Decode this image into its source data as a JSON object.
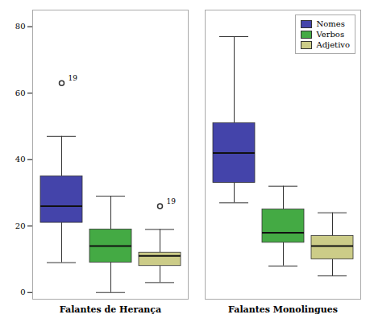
{
  "chart_data": {
    "type": "box",
    "categories": [
      "Falantes de Herança",
      "Falantes Monolingues"
    ],
    "series": [
      {
        "name": "Nomes",
        "color": "#4444AA",
        "q1": [
          21,
          33
        ],
        "median": [
          26,
          42
        ],
        "q3": [
          35,
          51
        ],
        "whislo": [
          9,
          27
        ],
        "whishi": [
          47,
          77
        ],
        "fliers": [
          [
            63
          ],
          []
        ],
        "flier_labels": [
          "19",
          null
        ]
      },
      {
        "name": "Verbos",
        "color": "#44AA44",
        "q1": [
          9,
          15
        ],
        "median": [
          14,
          18
        ],
        "q3": [
          19,
          25
        ],
        "whislo": [
          0,
          8
        ],
        "whishi": [
          29,
          32
        ],
        "fliers": [
          [],
          []
        ]
      },
      {
        "name": "Adjetivo",
        "color": "#CCCC88",
        "q1": [
          8,
          10
        ],
        "median": [
          11,
          14
        ],
        "q3": [
          12,
          17
        ],
        "whislo": [
          3,
          5
        ],
        "whishi": [
          19,
          24
        ],
        "fliers": [
          [
            26
          ],
          []
        ],
        "flier_labels": [
          "19",
          null
        ]
      }
    ],
    "ylim": [
      -2,
      85
    ],
    "yticks": [
      0,
      20,
      40,
      60,
      80
    ],
    "legend": "upper right",
    "grid": false
  }
}
